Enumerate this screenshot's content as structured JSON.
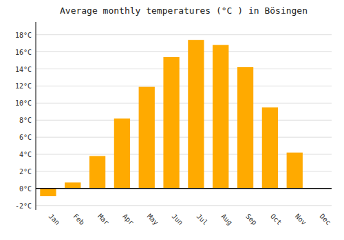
{
  "chart_data": {
    "type": "bar",
    "title": "Average monthly temperatures (°C ) in Bösingen",
    "categories": [
      "Jan",
      "Feb",
      "Mar",
      "Apr",
      "May",
      "Jun",
      "Jul",
      "Aug",
      "Sep",
      "Oct",
      "Nov",
      "Dec"
    ],
    "values": [
      -0.9,
      0.7,
      3.8,
      8.2,
      11.9,
      15.4,
      17.4,
      16.8,
      14.2,
      9.5,
      4.2,
      0.0
    ],
    "color": "#FFAA00",
    "ylim": [
      -2.5,
      19.5
    ],
    "yticks": [
      {
        "value": -2,
        "label": "-2°C"
      },
      {
        "value": 0,
        "label": "0°C"
      },
      {
        "value": 2,
        "label": "2°C"
      },
      {
        "value": 4,
        "label": "4°C"
      },
      {
        "value": 6,
        "label": "6°C"
      },
      {
        "value": 8,
        "label": "8°C"
      },
      {
        "value": 10,
        "label": "10°C"
      },
      {
        "value": 12,
        "label": "12°C"
      },
      {
        "value": 14,
        "label": "14°C"
      },
      {
        "value": 16,
        "label": "16°C"
      },
      {
        "value": 18,
        "label": "18°C"
      }
    ],
    "grid": true
  }
}
